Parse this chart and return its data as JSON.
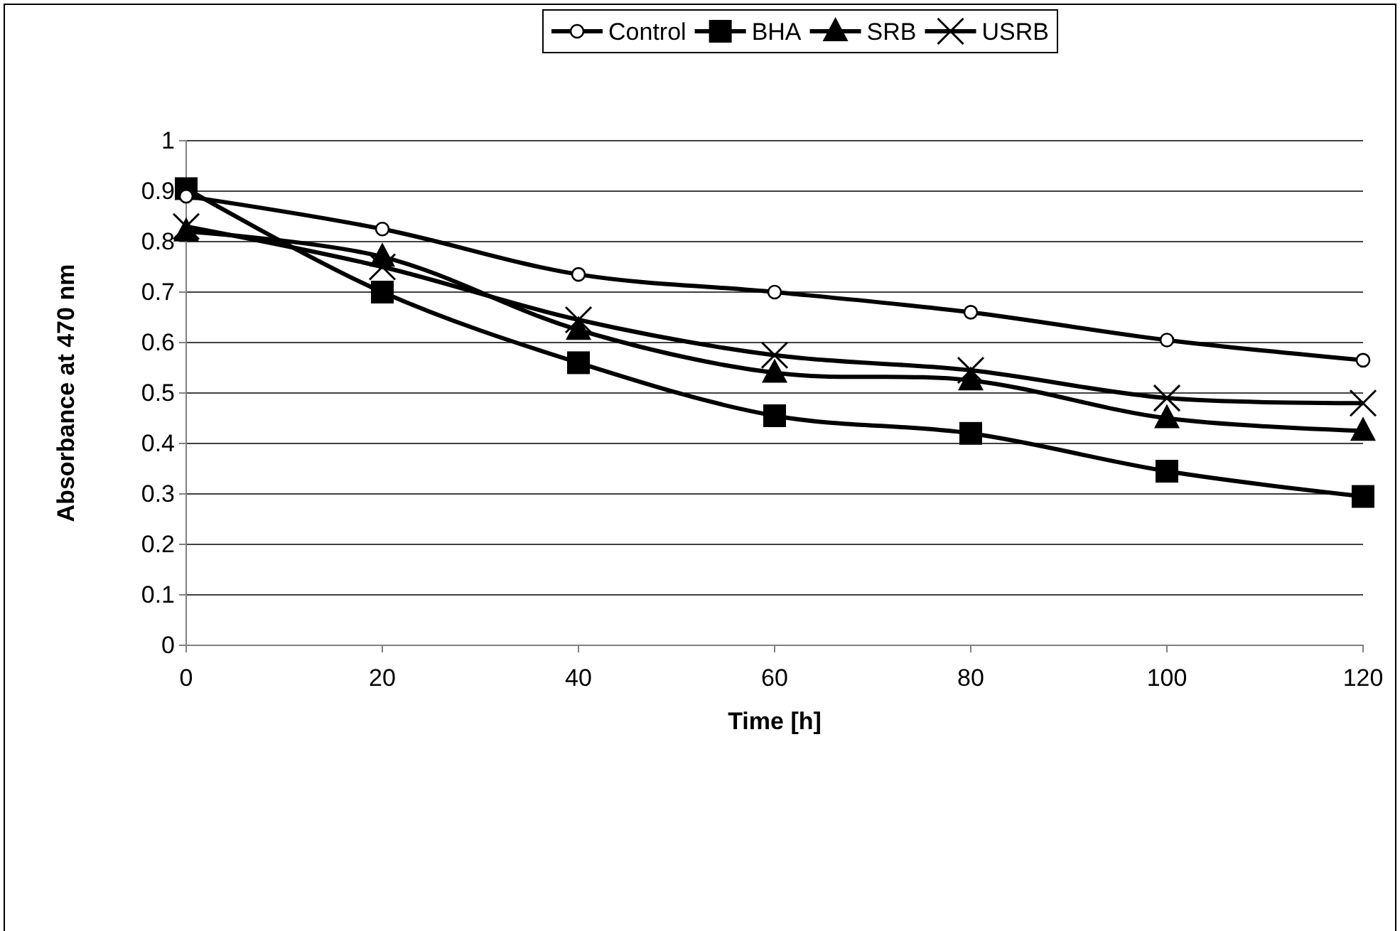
{
  "chart_data": {
    "type": "line",
    "xlabel": "Time [h]",
    "ylabel": "Absorbance at 470 nm",
    "x": [
      0,
      20,
      40,
      60,
      80,
      100,
      120
    ],
    "xlim": [
      0,
      120
    ],
    "xticks": [
      0,
      20,
      40,
      60,
      80,
      100,
      120
    ],
    "ylim": [
      0,
      1
    ],
    "yticks": [
      0,
      0.1,
      0.2,
      0.3,
      0.4,
      0.5,
      0.6,
      0.7,
      0.8,
      0.9,
      1
    ],
    "grid": "y",
    "legend": "top",
    "series": [
      {
        "name": "Control",
        "color": "#000000",
        "marker": "circle",
        "values": [
          0.89,
          0.825,
          0.735,
          0.7,
          0.66,
          0.605,
          0.565
        ]
      },
      {
        "name": "BHA",
        "color": "#000000",
        "marker": "square",
        "values": [
          0.905,
          0.7,
          0.56,
          0.455,
          0.42,
          0.345,
          0.295
        ]
      },
      {
        "name": "SRB",
        "color": "#000000",
        "marker": "triangle",
        "values": [
          0.82,
          0.77,
          0.625,
          0.54,
          0.525,
          0.45,
          0.425
        ]
      },
      {
        "name": "USRB",
        "color": "#000000",
        "marker": "cross",
        "values": [
          0.83,
          0.75,
          0.645,
          0.575,
          0.545,
          0.49,
          0.48
        ]
      }
    ]
  }
}
